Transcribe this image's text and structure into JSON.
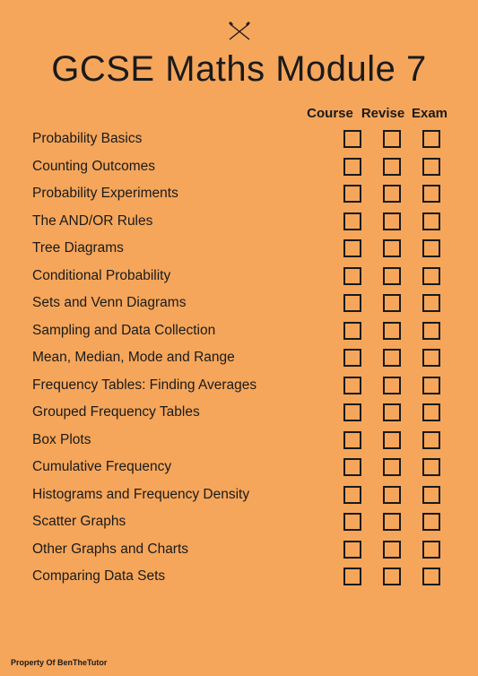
{
  "page": {
    "background_color": "#f5a65b",
    "text_color": "#1a1a1a",
    "title": "GCSE Maths Module 7",
    "title_fontsize": 40,
    "label_fontsize": 15.5,
    "header_fontsize": 15,
    "checkbox_size": 20,
    "checkbox_border_width": 2.5
  },
  "headers": {
    "course": "Course",
    "revise": "Revise",
    "exam": "Exam"
  },
  "topics": [
    {
      "label": "Probability Basics"
    },
    {
      "label": "Counting Outcomes"
    },
    {
      "label": "Probability Experiments"
    },
    {
      "label": "The AND/OR Rules"
    },
    {
      "label": "Tree Diagrams"
    },
    {
      "label": "Conditional Probability"
    },
    {
      "label": "Sets and Venn Diagrams"
    },
    {
      "label": "Sampling and Data Collection"
    },
    {
      "label": "Mean, Median, Mode and Range"
    },
    {
      "label": "Frequency Tables: Finding Averages"
    },
    {
      "label": "Grouped Frequency Tables"
    },
    {
      "label": "Box Plots"
    },
    {
      "label": "Cumulative Frequency"
    },
    {
      "label": "Histograms and Frequency Density"
    },
    {
      "label": "Scatter Graphs"
    },
    {
      "label": "Other Graphs and Charts"
    },
    {
      "label": "Comparing Data Sets"
    }
  ],
  "footer": "Property Of BenTheTutor"
}
